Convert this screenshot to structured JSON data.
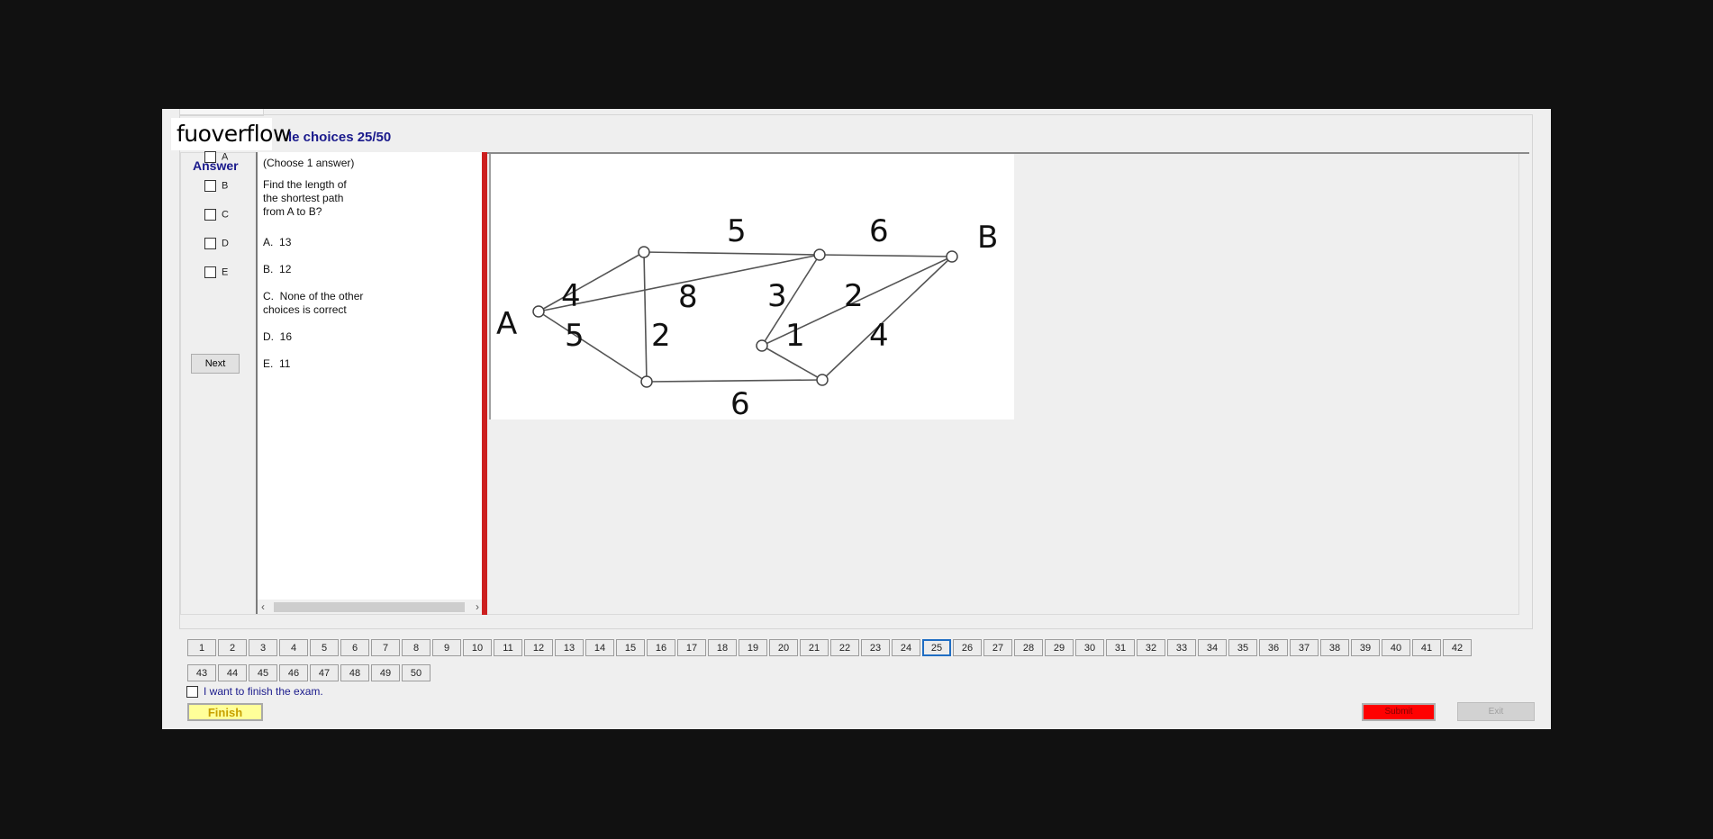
{
  "brand": {
    "logo_text": "fuoverflow"
  },
  "header": {
    "title": "le choices 25/50"
  },
  "answer_panel": {
    "label": "Answer",
    "options": [
      "A",
      "B",
      "C",
      "D",
      "E"
    ],
    "next_label": "Next"
  },
  "question": {
    "instruction": "(Choose 1 answer)",
    "text_lines": [
      "Find the length of",
      "the shortest path",
      "from A to B?"
    ],
    "choices": [
      {
        "letter": "A.",
        "text": "13"
      },
      {
        "letter": "B.",
        "text": "12"
      },
      {
        "letter": "C.",
        "text": "None of the other",
        "text2": "choices is correct"
      },
      {
        "letter": "D.",
        "text": "16"
      },
      {
        "letter": "E.",
        "text": "11"
      }
    ]
  },
  "graph": {
    "node_labels": {
      "start": "A",
      "end": "B"
    },
    "edge_weights": [
      "4",
      "5",
      "5",
      "2",
      "8",
      "6",
      "3",
      "2",
      "1",
      "4",
      "6"
    ]
  },
  "pager": {
    "pages": [
      "1",
      "2",
      "3",
      "4",
      "5",
      "6",
      "7",
      "8",
      "9",
      "10",
      "11",
      "12",
      "13",
      "14",
      "15",
      "16",
      "17",
      "18",
      "19",
      "20",
      "21",
      "22",
      "23",
      "24",
      "25",
      "26",
      "27",
      "28",
      "29",
      "30",
      "31",
      "32",
      "33",
      "34",
      "35",
      "36",
      "37",
      "38",
      "39",
      "40",
      "41",
      "42",
      "43",
      "44",
      "45",
      "46",
      "47",
      "48",
      "49",
      "50"
    ],
    "current": "25"
  },
  "footer": {
    "finish_check_label": "I want to finish the exam.",
    "finish_label": "Finish",
    "submit_label": "Submit",
    "exit_label": "Exit"
  },
  "colors": {
    "title_blue": "#1a1a8c",
    "divider_red": "#cc1f1f",
    "finish_yellow": "#ffff99",
    "submit_red": "#ff0000",
    "active_page_border": "#1f6dc3"
  }
}
